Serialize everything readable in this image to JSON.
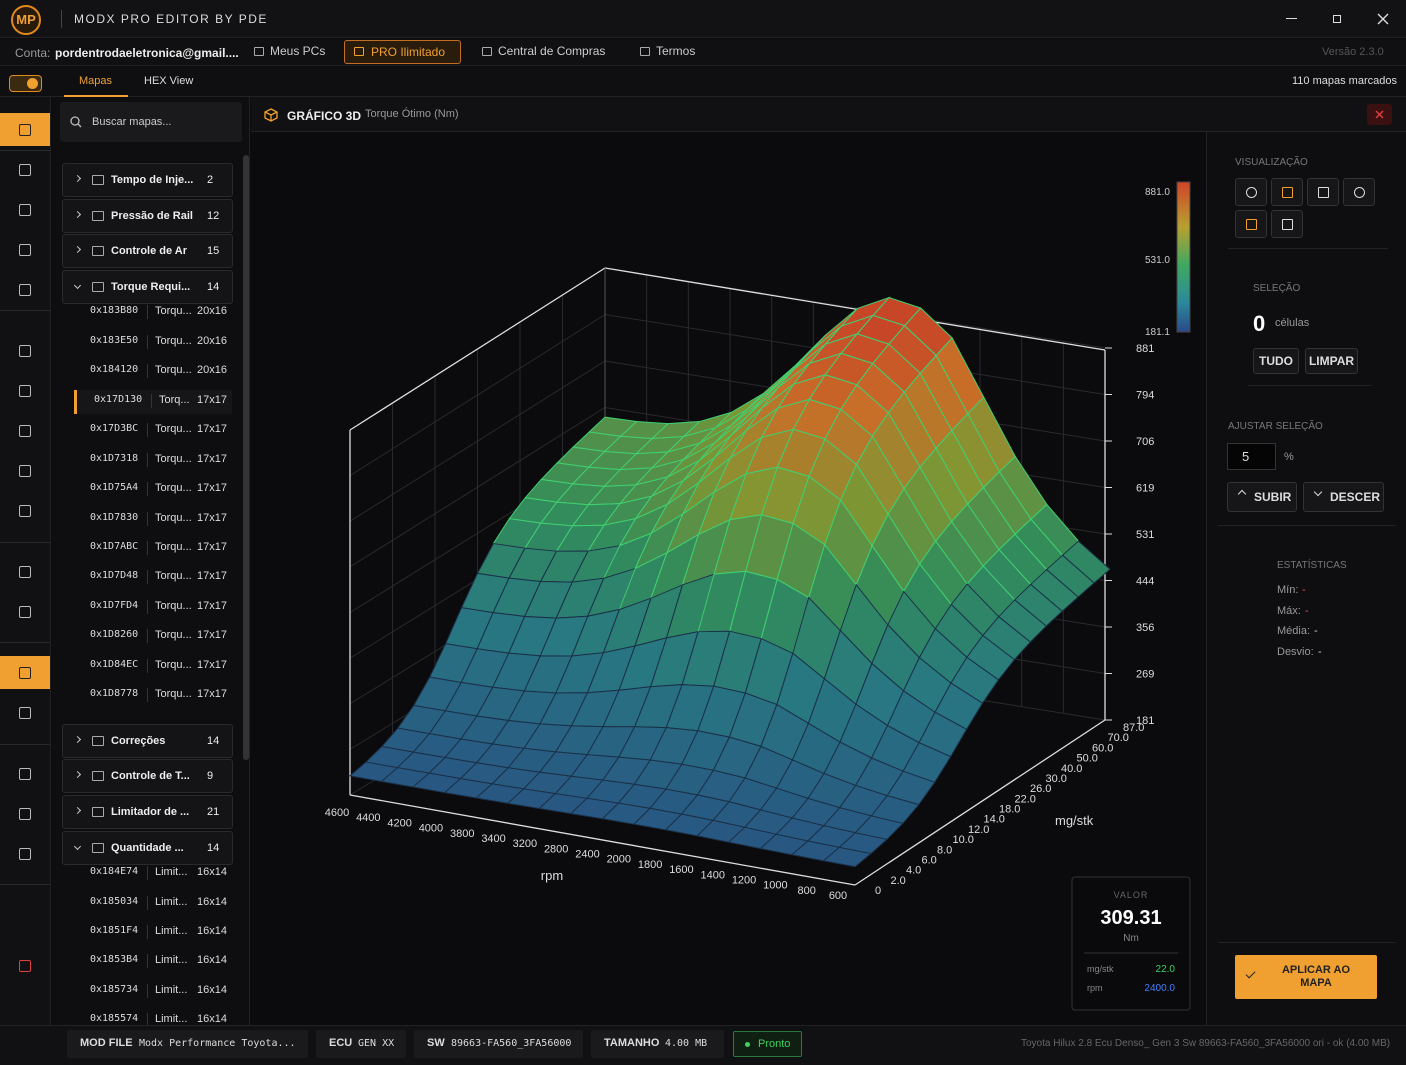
{
  "app": {
    "title": "MODX PRO EDITOR BY PDE",
    "logo": "MP"
  },
  "account": {
    "label": "Conta:",
    "email": "pordentrodaeletronica@gmail....",
    "buttons": [
      "Meus PCs",
      "PRO Ilimitado",
      "Central de Compras",
      "Termos"
    ],
    "version": "Versão 2.3.0"
  },
  "tabs": [
    "Mapas",
    "HEX View"
  ],
  "marked": "110 mapas marcados",
  "search": "Buscar mapas...",
  "tree": [
    {
      "name": "Tempo de Inje...",
      "count": "2",
      "items": []
    },
    {
      "name": "Pressão de Rail",
      "count": "12",
      "items": []
    },
    {
      "name": "Controle de Ar",
      "count": "15",
      "items": []
    },
    {
      "name": "Torque Requi...",
      "count": "14",
      "items": [
        {
          "addr": "0x183B80",
          "name": "Torqu...",
          "size": "20x16"
        },
        {
          "addr": "0x183E50",
          "name": "Torqu...",
          "size": "20x16"
        },
        {
          "addr": "0x184120",
          "name": "Torqu...",
          "size": "20x16"
        },
        {
          "addr": "0x17D130",
          "name": "Torq...",
          "size": "17x17"
        },
        {
          "addr": "0x17D3BC",
          "name": "Torqu...",
          "size": "17x17"
        },
        {
          "addr": "0x1D7318",
          "name": "Torqu...",
          "size": "17x17"
        },
        {
          "addr": "0x1D75A4",
          "name": "Torqu...",
          "size": "17x17"
        },
        {
          "addr": "0x1D7830",
          "name": "Torqu...",
          "size": "17x17"
        },
        {
          "addr": "0x1D7ABC",
          "name": "Torqu...",
          "size": "17x17"
        },
        {
          "addr": "0x1D7D48",
          "name": "Torqu...",
          "size": "17x17"
        },
        {
          "addr": "0x1D7FD4",
          "name": "Torqu...",
          "size": "17x17"
        },
        {
          "addr": "0x1D8260",
          "name": "Torqu...",
          "size": "17x17"
        },
        {
          "addr": "0x1D84EC",
          "name": "Torqu...",
          "size": "17x17"
        },
        {
          "addr": "0x1D8778",
          "name": "Torqu...",
          "size": "17x17"
        }
      ]
    },
    {
      "name": "Correções",
      "count": "14",
      "items": []
    },
    {
      "name": "Controle de T...",
      "count": "9",
      "items": []
    },
    {
      "name": "Limitador de ...",
      "count": "21",
      "items": []
    },
    {
      "name": "Quantidade ...",
      "count": "14",
      "items": [
        {
          "addr": "0x184E74",
          "name": "Limit...",
          "size": "16x14"
        },
        {
          "addr": "0x185034",
          "name": "Limit...",
          "size": "16x14"
        },
        {
          "addr": "0x1851F4",
          "name": "Limit...",
          "size": "16x14"
        },
        {
          "addr": "0x1853B4",
          "name": "Limit...",
          "size": "16x14"
        },
        {
          "addr": "0x185734",
          "name": "Limit...",
          "size": "16x14"
        },
        {
          "addr": "0x185574",
          "name": "Limit...",
          "size": "16x14"
        }
      ]
    }
  ],
  "chart": {
    "title": "GRÁFICO 3D",
    "subtitle": "Torque Ótimo (Nm)",
    "z_ticks": [
      "881",
      "794",
      "706",
      "619",
      "531",
      "444",
      "356",
      "269",
      "181"
    ],
    "colorbar": [
      "881.0",
      "531.0",
      "181.1"
    ],
    "x_label": "rpm",
    "x_ticks": [
      "4600",
      "4400",
      "4200",
      "4000",
      "3800",
      "3400",
      "3200",
      "2800",
      "2400",
      "2000",
      "1800",
      "1600",
      "1400",
      "1200",
      "1000",
      "800",
      "600"
    ],
    "y_label": "mg/stk",
    "y_ticks": [
      "0",
      "2.0",
      "4.0",
      "6.0",
      "8.0",
      "10.0",
      "12.0",
      "14.0",
      "18.0",
      "22.0",
      "26.0",
      "30.0",
      "40.0",
      "50.0",
      "60.0",
      "70.0",
      "87.0"
    ]
  },
  "value_box": {
    "label": "VALOR",
    "value": "309.31",
    "unit": "Nm",
    "rows": [
      {
        "name": "mg/stk",
        "value": "22.0"
      },
      {
        "name": "rpm",
        "value": "2400.0"
      }
    ]
  },
  "panel": {
    "view": "VISUALIZAÇÃO",
    "selection": "SELEÇÃO",
    "cells": "0",
    "cells_label": "células",
    "all": "TUDO",
    "clear": "LIMPAR",
    "adjust": "AJUSTAR SELEÇÃO",
    "step": "5",
    "step_unit": "%",
    "up": "SUBIR",
    "down": "DESCER",
    "stats": "ESTATÍSTICAS",
    "stat_rows": [
      {
        "name": "Mín:",
        "value": "-"
      },
      {
        "name": "Máx:",
        "value": "-"
      },
      {
        "name": "Média:",
        "value": "-"
      },
      {
        "name": "Desvio:",
        "value": "-"
      }
    ],
    "apply": "APLICAR AO MAPA"
  },
  "status": {
    "fields": [
      {
        "key": "MOD FILE",
        "value": "Modx Performance Toyota..."
      },
      {
        "key": "ECU",
        "value": "GEN XX"
      },
      {
        "key": "SW",
        "value": "89663-FA560_3FA56000"
      },
      {
        "key": "TAMANHO",
        "value": "4.00 MB"
      }
    ],
    "state": "Pronto",
    "file": "Toyota Hilux 2.8 Ecu Denso_ Gen 3 Sw 89663-FA560_3FA56000 ori - ok (4.00 MB)"
  }
}
